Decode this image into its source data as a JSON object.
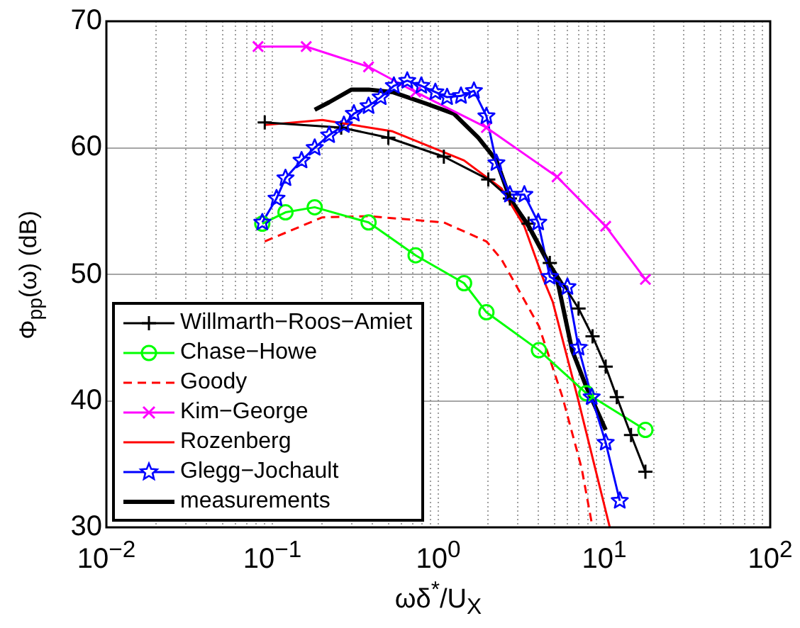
{
  "chart_data": {
    "type": "line",
    "xlabel": "ωδ$^{*}$/U$_{X}$",
    "ylabel": "Φ$_{pp}$(ω) (dB)",
    "log": "x",
    "xlim": [
      0.01,
      100
    ],
    "ylim": [
      30,
      70
    ],
    "xticks": [
      {
        "value": 0.01,
        "label": "10$^{−2}$"
      },
      {
        "value": 0.02,
        "label": null
      },
      {
        "value": 0.03,
        "label": null
      },
      {
        "value": 0.04,
        "label": null
      },
      {
        "value": 0.05,
        "label": null
      },
      {
        "value": 0.06,
        "label": null
      },
      {
        "value": 0.07,
        "label": null
      },
      {
        "value": 0.08,
        "label": null
      },
      {
        "value": 0.09,
        "label": null
      },
      {
        "value": 0.1,
        "label": "10$^{−1}$"
      },
      {
        "value": 0.2,
        "label": null
      },
      {
        "value": 0.3,
        "label": null
      },
      {
        "value": 0.4,
        "label": null
      },
      {
        "value": 0.5,
        "label": null
      },
      {
        "value": 0.6,
        "label": null
      },
      {
        "value": 0.7,
        "label": null
      },
      {
        "value": 0.8,
        "label": null
      },
      {
        "value": 0.9,
        "label": null
      },
      {
        "value": 1,
        "label": "10$^{0}$"
      },
      {
        "value": 2,
        "label": null
      },
      {
        "value": 3,
        "label": null
      },
      {
        "value": 4,
        "label": null
      },
      {
        "value": 5,
        "label": null
      },
      {
        "value": 6,
        "label": null
      },
      {
        "value": 7,
        "label": null
      },
      {
        "value": 8,
        "label": null
      },
      {
        "value": 9,
        "label": null
      },
      {
        "value": 10,
        "label": "10$^{1}$"
      },
      {
        "value": 20,
        "label": null
      },
      {
        "value": 30,
        "label": null
      },
      {
        "value": 40,
        "label": null
      },
      {
        "value": 50,
        "label": null
      },
      {
        "value": 60,
        "label": null
      },
      {
        "value": 70,
        "label": null
      },
      {
        "value": 80,
        "label": null
      },
      {
        "value": 90,
        "label": null
      },
      {
        "value": 100,
        "label": "10$^{2}$"
      }
    ],
    "yticks": [
      30,
      40,
      50,
      60,
      70
    ],
    "grid": true,
    "legend": "bottom left",
    "series": [
      {
        "name": "Willmarth−Roos−Amiet",
        "color": "#000000",
        "marker": "cross",
        "x": [
          0.09,
          0.26,
          0.5,
          1.08,
          2.0,
          2.7,
          3.5,
          4.7,
          7,
          8.5,
          10.2,
          11.9,
          14.5,
          17.7
        ],
        "values": [
          62,
          61.6,
          60.8,
          59.3,
          57.5,
          56,
          54,
          50.9,
          47.3,
          45.1,
          42.7,
          40.3,
          37.3,
          34.4
        ]
      },
      {
        "name": "Chase−Howe",
        "color": "#00ff00",
        "marker": "circle",
        "x": [
          0.087,
          0.12,
          0.18,
          0.38,
          0.73,
          1.43,
          1.95,
          4.04,
          7.8,
          17.7
        ],
        "values": [
          54,
          54.9,
          55.3,
          54.1,
          51.5,
          49.3,
          47,
          44,
          40.6,
          37.7
        ]
      },
      {
        "name": "Goody",
        "color": "#ff0000",
        "marker": "none",
        "line_style": "dashed",
        "x": [
          0.09,
          0.2,
          0.38,
          1.08,
          1.95,
          2.4,
          4.04,
          5.6,
          7.3,
          8.5
        ],
        "values": [
          52.6,
          54.5,
          54.6,
          54.1,
          52.6,
          51.2,
          45.9,
          40.3,
          34.7,
          30
        ]
      },
      {
        "name": "Kim−George",
        "color": "#ff00ff",
        "marker": "x",
        "x": [
          0.082,
          0.16,
          0.38,
          0.73,
          1.95,
          5.2,
          10.2,
          17.7
        ],
        "values": [
          68,
          68,
          66.4,
          64.4,
          61.6,
          57.7,
          53.8,
          49.6
        ]
      },
      {
        "name": "Rozenberg",
        "color": "#ff0000",
        "marker": "none",
        "x": [
          0.09,
          0.2,
          0.53,
          1.43,
          2.4,
          3.3,
          4.3,
          4.9,
          6.9,
          10.8
        ],
        "values": [
          61.8,
          62.2,
          61.3,
          59,
          56.8,
          53.8,
          49.6,
          47.8,
          40.3,
          30
        ]
      },
      {
        "name": "Glegg−Jochault",
        "color": "#0000ff",
        "marker": "star",
        "x": [
          0.087,
          0.106,
          0.12,
          0.15,
          0.18,
          0.22,
          0.27,
          0.31,
          0.38,
          0.45,
          0.54,
          0.65,
          0.79,
          0.96,
          1.13,
          1.37,
          1.64,
          1.95,
          2.24,
          2.7,
          3.3,
          4.0,
          4.7,
          6,
          7,
          8.4,
          10.2,
          12.4
        ],
        "values": [
          54.1,
          56,
          57.6,
          59,
          60,
          61,
          61.8,
          62.7,
          63.3,
          64,
          64.9,
          65.3,
          64.9,
          64.4,
          64,
          64.1,
          64.5,
          62.5,
          58.8,
          56.3,
          56.3,
          54.1,
          49.8,
          49,
          44.2,
          40.3,
          36.7,
          32.1
        ]
      },
      {
        "name": "measurements",
        "color": "#000000",
        "marker": "none",
        "x": [
          0.18,
          0.22,
          0.3,
          0.38,
          0.53,
          0.84,
          1.24,
          1.74,
          2.24,
          2.7,
          3.5,
          5.2,
          6.4,
          7.8,
          10.2
        ],
        "values": [
          63,
          63.6,
          64.6,
          64.6,
          64.4,
          63.5,
          62.7,
          60.8,
          59,
          56,
          53.8,
          49.6,
          44,
          41.1,
          37.7
        ]
      }
    ]
  }
}
